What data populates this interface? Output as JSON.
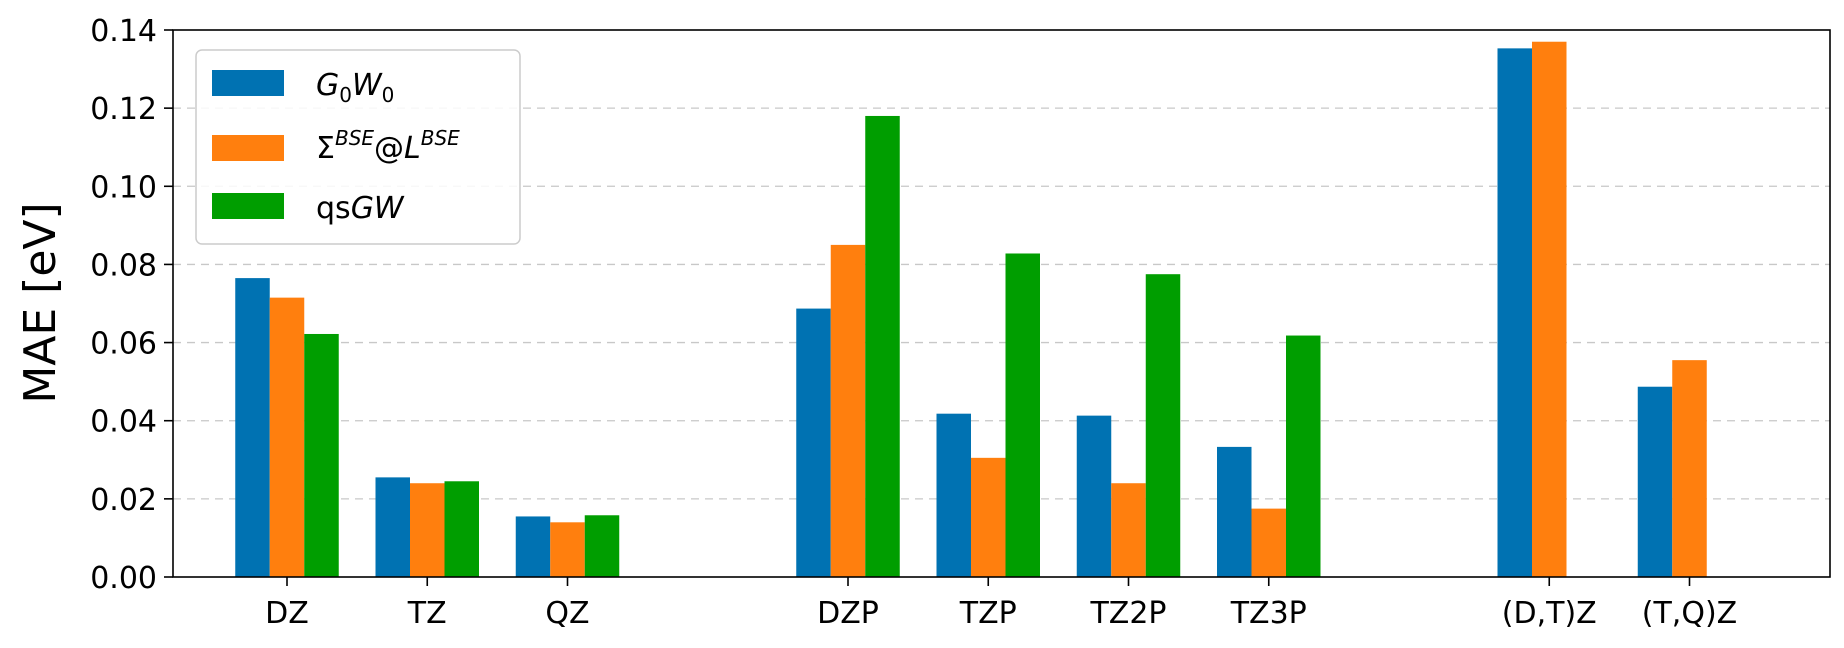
{
  "chart_data": {
    "type": "bar",
    "ylabel": "MAE [eV]",
    "ylim": [
      0,
      0.14
    ],
    "yticks": [
      "0.00",
      "0.02",
      "0.04",
      "0.06",
      "0.08",
      "0.10",
      "0.12",
      "0.14"
    ],
    "grid": "horizontal dashed",
    "legend_position": "top-left",
    "categories": [
      "DZ",
      "TZ",
      "QZ",
      "DZP",
      "TZP",
      "TZ2P",
      "TZ3P",
      "(D,T)Z",
      "(T,Q)Z"
    ],
    "series": [
      {
        "name": "G0W0",
        "color": "#0072b2",
        "values": [
          0.0765,
          0.0255,
          0.0155,
          0.0687,
          0.0418,
          0.0413,
          0.0333,
          0.1353,
          0.0487
        ]
      },
      {
        "name": "ΣBSE@LBSE",
        "color": "#ff7f0e",
        "values": [
          0.0715,
          0.024,
          0.014,
          0.085,
          0.0305,
          0.024,
          0.0175,
          0.137,
          0.0555
        ]
      },
      {
        "name": "qsGW",
        "color": "#009e00",
        "values": [
          0.0622,
          0.0245,
          0.0158,
          0.118,
          0.0828,
          0.0775,
          0.0618,
          null,
          null
        ]
      }
    ]
  }
}
